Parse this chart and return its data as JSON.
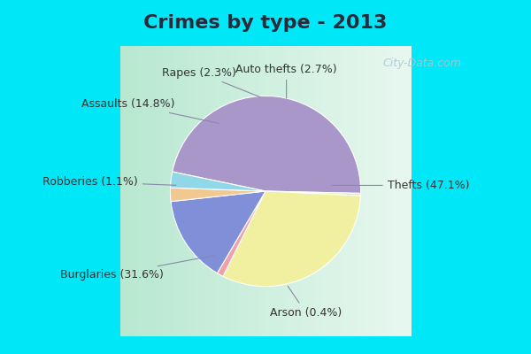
{
  "title": "Crimes by type - 2013",
  "slices": [
    {
      "label": "Thefts",
      "pct": 47.1,
      "color": "#a897c8"
    },
    {
      "label": "Arson",
      "pct": 0.4,
      "color": "#d8eba8"
    },
    {
      "label": "Burglaries",
      "pct": 31.6,
      "color": "#f0f0a0"
    },
    {
      "label": "Robberies",
      "pct": 1.1,
      "color": "#f0a0a8"
    },
    {
      "label": "Assaults",
      "pct": 14.8,
      "color": "#8090d8"
    },
    {
      "label": "Rapes",
      "pct": 2.3,
      "color": "#f0c890"
    },
    {
      "label": "Auto thefts",
      "pct": 2.7,
      "color": "#90d8e8"
    }
  ],
  "bg_outer": "#00e8f8",
  "bg_chart_left": "#b8e8d0",
  "bg_chart_right": "#e8f8f0",
  "title_fontsize": 16,
  "label_fontsize": 9,
  "startangle": 168.24,
  "watermark": "City-Data.com"
}
